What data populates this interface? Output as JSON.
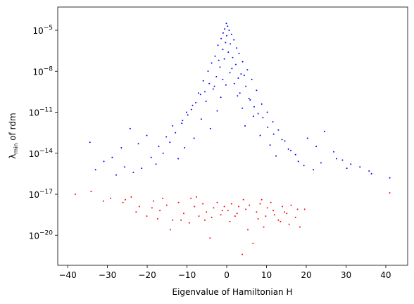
{
  "chart_data": {
    "type": "scatter",
    "title": "",
    "xlabel": "Eigenvalue of Hamiltonian H",
    "ylabel_main": "λ",
    "ylabel_sub": "min",
    "ylabel_rest": " of rdm",
    "xscale": "linear",
    "yscale": "log",
    "xlim": [
      -42.5,
      45.5
    ],
    "ylim_exp": [
      -22.2,
      -3.3
    ],
    "x_ticks": [
      -40,
      -30,
      -20,
      -10,
      0,
      10,
      20,
      30,
      40
    ],
    "x_tick_labels": [
      "−40",
      "−30",
      "−20",
      "−10",
      "0",
      "10",
      "20",
      "30",
      "40"
    ],
    "y_ticks_exp": [
      -20,
      -17,
      -14,
      -11,
      -8,
      -5
    ],
    "y_tick_base": "10",
    "y_tick_exps": [
      "−20",
      "−17",
      "−14",
      "−11",
      "−8",
      "−5"
    ],
    "grid": false,
    "legend": "none",
    "series": [
      {
        "color": "#0000ff",
        "points": [
          [
            -0.1,
            -4.5
          ],
          [
            0.2,
            -4.7
          ],
          [
            -0.5,
            -4.9
          ],
          [
            0.6,
            -5.0
          ],
          [
            -0.9,
            -5.2
          ],
          [
            1.2,
            -5.3
          ],
          [
            0.0,
            -5.4
          ],
          [
            -1.4,
            -5.6
          ],
          [
            1.8,
            -5.7
          ],
          [
            -0.3,
            -5.9
          ],
          [
            0.9,
            -6.0
          ],
          [
            -2.2,
            -6.1
          ],
          [
            2.5,
            -6.3
          ],
          [
            -1.0,
            -6.4
          ],
          [
            0.4,
            -6.6
          ],
          [
            3.1,
            -6.7
          ],
          [
            -2.9,
            -6.9
          ],
          [
            1.5,
            -7.0
          ],
          [
            -0.6,
            -7.1
          ],
          [
            4.0,
            -7.3
          ],
          [
            -3.8,
            -7.4
          ],
          [
            2.3,
            -7.5
          ],
          [
            -1.7,
            -7.7
          ],
          [
            5.2,
            -7.9
          ],
          [
            -4.7,
            -8.0
          ],
          [
            0.8,
            -8.1
          ],
          [
            3.6,
            -8.2
          ],
          [
            -2.6,
            -8.4
          ],
          [
            6.3,
            -8.6
          ],
          [
            -5.9,
            -8.7
          ],
          [
            1.9,
            -8.9
          ],
          [
            -0.2,
            -9.0
          ],
          [
            4.8,
            -9.1
          ],
          [
            -3.4,
            -9.3
          ],
          [
            7.5,
            -9.4
          ],
          [
            -7.1,
            -9.6
          ],
          [
            2.7,
            -9.8
          ],
          [
            -1.5,
            -9.9
          ],
          [
            5.9,
            -10.1
          ],
          [
            -5.2,
            -10.2
          ],
          [
            8.8,
            -10.4
          ],
          [
            -8.6,
            -10.5
          ],
          [
            3.9,
            -10.7
          ],
          [
            -2.4,
            -10.9
          ],
          [
            10.2,
            -11.0
          ],
          [
            -9.8,
            -11.2
          ],
          [
            6.7,
            -11.3
          ],
          [
            -6.4,
            -11.5
          ],
          [
            11.6,
            -11.7
          ],
          [
            -11.3,
            -11.8
          ],
          [
            4.6,
            -12.0
          ],
          [
            -4.1,
            -12.2
          ],
          [
            13.0,
            -12.3
          ],
          [
            -12.9,
            -12.5
          ],
          [
            8.4,
            -12.7
          ],
          [
            -8.2,
            -12.9
          ],
          [
            14.6,
            -13.1
          ],
          [
            -14.3,
            -13.2
          ],
          [
            10.9,
            -13.4
          ],
          [
            -10.6,
            -13.6
          ],
          [
            16.1,
            -13.8
          ],
          [
            -16.0,
            -14.0
          ],
          [
            12.4,
            -14.2
          ],
          [
            -12.2,
            -14.4
          ],
          [
            18.0,
            -14.6
          ],
          [
            -17.8,
            -14.8
          ],
          [
            20.3,
            -12.9
          ],
          [
            -20.1,
            -12.7
          ],
          [
            22.5,
            -13.5
          ],
          [
            -22.2,
            -13.3
          ],
          [
            24.6,
            -12.4
          ],
          [
            -24.3,
            -12.2
          ],
          [
            26.9,
            -13.9
          ],
          [
            -26.5,
            -13.6
          ],
          [
            29.1,
            -14.5
          ],
          [
            -28.8,
            -14.3
          ],
          [
            31.2,
            -14.8
          ],
          [
            -30.9,
            -14.6
          ],
          [
            33.5,
            -15.0
          ],
          [
            -33.0,
            -15.2
          ],
          [
            35.8,
            -15.3
          ],
          [
            -34.4,
            -13.2
          ],
          [
            36.4,
            -15.5
          ],
          [
            41.0,
            -15.8
          ],
          [
            -1.0,
            -8.6
          ],
          [
            1.3,
            -7.8
          ],
          [
            -2.0,
            -7.2
          ],
          [
            2.9,
            -8.5
          ],
          [
            -3.1,
            -9.1
          ],
          [
            3.3,
            -9.6
          ],
          [
            -4.4,
            -8.9
          ],
          [
            4.4,
            -8.3
          ],
          [
            -5.5,
            -9.5
          ],
          [
            5.6,
            -10.0
          ],
          [
            -6.6,
            -9.7
          ],
          [
            6.9,
            -10.6
          ],
          [
            -7.8,
            -10.3
          ],
          [
            7.9,
            -11.1
          ],
          [
            -8.9,
            -10.8
          ],
          [
            9.1,
            -11.4
          ],
          [
            -10.1,
            -11.0
          ],
          [
            10.3,
            -12.1
          ],
          [
            -11.1,
            -11.6
          ],
          [
            11.8,
            -12.6
          ],
          [
            -13.6,
            -12.0
          ],
          [
            13.9,
            -13.0
          ],
          [
            -15.2,
            -12.8
          ],
          [
            15.5,
            -13.7
          ],
          [
            -17.1,
            -13.5
          ],
          [
            17.3,
            -14.1
          ],
          [
            -19.0,
            -14.3
          ],
          [
            19.4,
            -14.9
          ],
          [
            -21.4,
            -15.1
          ],
          [
            21.8,
            -15.2
          ],
          [
            -23.5,
            -15.4
          ],
          [
            23.7,
            -14.7
          ],
          [
            -25.7,
            -15.0
          ],
          [
            27.6,
            -14.4
          ],
          [
            -27.8,
            -15.6
          ],
          [
            30.2,
            -15.1
          ]
        ]
      },
      {
        "color": "#ff0000",
        "points": [
          [
            -38.1,
            -17.0
          ],
          [
            -34.1,
            -16.8
          ],
          [
            -29.2,
            -17.3
          ],
          [
            -26.1,
            -17.6
          ],
          [
            -24.0,
            -17.2
          ],
          [
            -22.0,
            -17.9
          ],
          [
            -20.1,
            -18.6
          ],
          [
            -18.4,
            -17.5
          ],
          [
            -16.8,
            -18.2
          ],
          [
            -15.1,
            -17.8
          ],
          [
            -13.6,
            -18.9
          ],
          [
            -12.1,
            -17.6
          ],
          [
            -10.8,
            -18.4
          ],
          [
            -9.4,
            -19.1
          ],
          [
            -8.1,
            -17.9
          ],
          [
            -7.0,
            -18.6
          ],
          [
            -6.0,
            -17.7
          ],
          [
            -5.1,
            -18.3
          ],
          [
            -4.2,
            -20.2
          ],
          [
            -3.3,
            -18.0
          ],
          [
            -2.4,
            -17.6
          ],
          [
            -1.5,
            -18.5
          ],
          [
            -0.6,
            -17.9
          ],
          [
            0.3,
            -18.2
          ],
          [
            1.2,
            -17.7
          ],
          [
            2.1,
            -18.6
          ],
          [
            3.0,
            -17.9
          ],
          [
            3.9,
            -21.4
          ],
          [
            4.8,
            -18.1
          ],
          [
            5.7,
            -17.8
          ],
          [
            6.6,
            -20.6
          ],
          [
            7.5,
            -18.3
          ],
          [
            8.4,
            -17.7
          ],
          [
            9.3,
            -19.4
          ],
          [
            10.2,
            -18.0
          ],
          [
            11.1,
            -17.6
          ],
          [
            12.0,
            -18.5
          ],
          [
            13.0,
            -18.9
          ],
          [
            14.0,
            -17.9
          ],
          [
            15.1,
            -18.4
          ],
          [
            16.2,
            -17.8
          ],
          [
            17.3,
            -18.7
          ],
          [
            18.4,
            -19.4
          ],
          [
            19.6,
            -18.1
          ],
          [
            -18.8,
            -18.0
          ],
          [
            -16.1,
            -17.3
          ],
          [
            -11.5,
            -18.9
          ],
          [
            -7.6,
            -17.2
          ],
          [
            -3.8,
            -18.7
          ],
          [
            0.8,
            -19.0
          ],
          [
            4.2,
            -17.4
          ],
          [
            7.9,
            -18.8
          ],
          [
            11.7,
            -18.2
          ],
          [
            15.7,
            -19.2
          ],
          [
            -25.5,
            -17.4
          ],
          [
            -31.0,
            -17.5
          ],
          [
            -14.2,
            -19.6
          ],
          [
            -9.0,
            -17.3
          ],
          [
            -1.1,
            -18.2
          ],
          [
            5.3,
            -19.6
          ],
          [
            9.8,
            -18.6
          ],
          [
            13.5,
            -19.0
          ],
          [
            17.8,
            -18.1
          ],
          [
            41.0,
            -16.9
          ],
          [
            -22.8,
            -18.3
          ],
          [
            -17.4,
            -18.8
          ],
          [
            -5.5,
            -18.9
          ],
          [
            2.6,
            -18.4
          ],
          [
            8.8,
            -17.4
          ],
          [
            14.5,
            -18.3
          ]
        ]
      }
    ]
  }
}
